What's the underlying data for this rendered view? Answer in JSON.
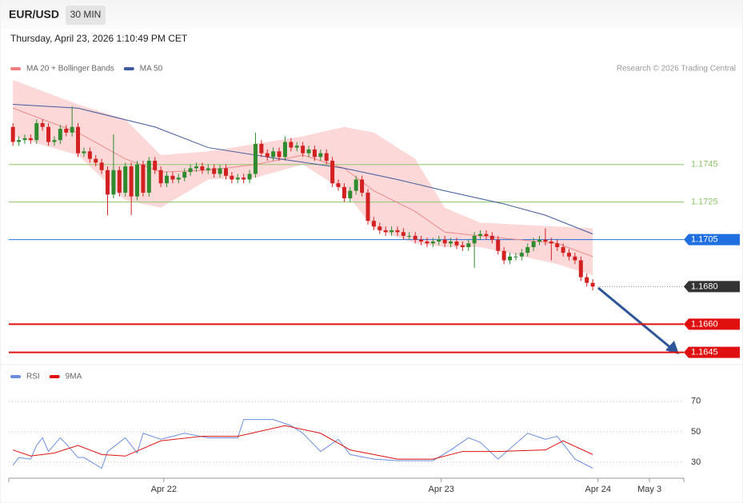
{
  "header": {
    "symbol": "EUR/USD",
    "interval": "30 MIN",
    "timestamp": "Thursday, April 23, 2026 1:10:49 PM CET",
    "copyright": "Research © 2026 Trading Central"
  },
  "chart_data": [
    {
      "type": "candlestick",
      "xlim": [
        -0.7,
        113.4
      ],
      "ylim": [
        1.1641,
        1.179
      ],
      "open": [
        1.1765,
        1.1757,
        1.1758,
        1.1759,
        1.1758,
        1.1767,
        1.1765,
        1.1757,
        1.1758,
        1.1764,
        1.1762,
        1.1765,
        1.1751,
        1.1752,
        1.1748,
        1.1746,
        1.1742,
        1.1729,
        1.1742,
        1.173,
        1.1744,
        1.1728,
        1.1745,
        1.173,
        1.1747,
        1.1742,
        1.1735,
        1.1739,
        1.1737,
        1.1738,
        1.1741,
        1.1743,
        1.1744,
        1.1742,
        1.1743,
        1.174,
        1.1743,
        1.1739,
        1.1737,
        1.1738,
        1.1737,
        1.174,
        1.1756,
        1.1751,
        1.1749,
        1.1752,
        1.1749,
        1.1757,
        1.1754,
        1.1755,
        1.1751,
        1.1753,
        1.1749,
        1.1751,
        1.1747,
        1.1735,
        1.1733,
        1.1727,
        1.1731,
        1.1737,
        1.173,
        1.1715,
        1.1712,
        1.171,
        1.1709,
        1.171,
        1.1709,
        1.1707,
        1.1707,
        1.1705,
        1.1704,
        1.1703,
        1.1704,
        1.1705,
        1.1703,
        1.1704,
        1.1702,
        1.1701,
        1.1703,
        1.1707,
        1.1708,
        1.1707,
        1.1705,
        1.1699,
        1.1694,
        1.1696,
        1.1696,
        1.1698,
        1.1701,
        1.1704,
        1.1705,
        1.1704,
        1.1703,
        1.1701,
        1.1698,
        1.1696,
        1.1694,
        1.1685,
        1.1682
      ],
      "high": [
        1.1767,
        1.176,
        1.1761,
        1.1761,
        1.1769,
        1.1769,
        1.1767,
        1.176,
        1.1766,
        1.1766,
        1.1776,
        1.1767,
        1.1754,
        1.1754,
        1.175,
        1.1748,
        1.1744,
        1.1761,
        1.1744,
        1.1746,
        1.1746,
        1.1747,
        1.1747,
        1.1749,
        1.1749,
        1.1744,
        1.1741,
        1.1741,
        1.174,
        1.1743,
        1.1745,
        1.1746,
        1.1746,
        1.1745,
        1.1745,
        1.1745,
        1.1745,
        1.1741,
        1.174,
        1.174,
        1.1742,
        1.1762,
        1.1758,
        1.1753,
        1.1754,
        1.1754,
        1.176,
        1.1759,
        1.1757,
        1.1757,
        1.1755,
        1.1755,
        1.1753,
        1.1753,
        1.1749,
        1.1737,
        1.1735,
        1.1733,
        1.1739,
        1.1739,
        1.1732,
        1.1717,
        1.1714,
        1.1712,
        1.1712,
        1.1712,
        1.1711,
        1.1709,
        1.1709,
        1.1707,
        1.1706,
        1.1706,
        1.1707,
        1.1707,
        1.1706,
        1.1706,
        1.1704,
        1.1705,
        1.1709,
        1.171,
        1.171,
        1.1709,
        1.1707,
        1.1701,
        1.1698,
        1.1698,
        1.17,
        1.1703,
        1.1706,
        1.1707,
        1.1711,
        1.1706,
        1.1705,
        1.1703,
        1.17,
        1.1698,
        1.1696,
        1.1687,
        1.1684
      ],
      "low": [
        1.1755,
        1.1755,
        1.1756,
        1.1756,
        1.1756,
        1.1763,
        1.1755,
        1.1755,
        1.1756,
        1.176,
        1.176,
        1.1749,
        1.1749,
        1.1746,
        1.1744,
        1.174,
        1.1718,
        1.1727,
        1.1728,
        1.1728,
        1.1718,
        1.1726,
        1.1728,
        1.1728,
        1.174,
        1.1733,
        1.1733,
        1.1735,
        1.1735,
        1.1736,
        1.1739,
        1.1741,
        1.174,
        1.174,
        1.1738,
        1.1738,
        1.1737,
        1.1735,
        1.1735,
        1.1735,
        1.1735,
        1.1738,
        1.1749,
        1.1747,
        1.1747,
        1.1747,
        1.1747,
        1.1752,
        1.1752,
        1.1749,
        1.1749,
        1.1747,
        1.1747,
        1.1745,
        1.1733,
        1.1731,
        1.1725,
        1.1725,
        1.1729,
        1.1728,
        1.1713,
        1.171,
        1.1708,
        1.1707,
        1.1707,
        1.1707,
        1.1705,
        1.1705,
        1.1703,
        1.1702,
        1.1701,
        1.1701,
        1.1702,
        1.1701,
        1.1701,
        1.17,
        1.1699,
        1.1699,
        1.169,
        1.1705,
        1.1705,
        1.1703,
        1.1697,
        1.1692,
        1.1692,
        1.1694,
        1.1694,
        1.1696,
        1.1699,
        1.1702,
        1.1702,
        1.1694,
        1.1699,
        1.1696,
        1.1694,
        1.1692,
        1.1683,
        1.168,
        1.1678
      ],
      "close": [
        1.1757,
        1.1758,
        1.1759,
        1.1758,
        1.1767,
        1.1765,
        1.1757,
        1.1758,
        1.1764,
        1.1762,
        1.1765,
        1.1751,
        1.1752,
        1.1748,
        1.1746,
        1.1742,
        1.1729,
        1.1742,
        1.173,
        1.1744,
        1.1728,
        1.1745,
        1.173,
        1.1747,
        1.1742,
        1.1735,
        1.1739,
        1.1737,
        1.1738,
        1.1741,
        1.1743,
        1.1744,
        1.1742,
        1.1743,
        1.174,
        1.1743,
        1.1739,
        1.1737,
        1.1738,
        1.1737,
        1.174,
        1.1756,
        1.1751,
        1.1749,
        1.1752,
        1.1749,
        1.1757,
        1.1754,
        1.1755,
        1.1751,
        1.1753,
        1.1749,
        1.1751,
        1.1747,
        1.1735,
        1.1733,
        1.1727,
        1.1731,
        1.1737,
        1.173,
        1.1715,
        1.1712,
        1.171,
        1.1709,
        1.171,
        1.1709,
        1.1707,
        1.1707,
        1.1705,
        1.1704,
        1.1703,
        1.1704,
        1.1705,
        1.1703,
        1.1704,
        1.1702,
        1.1701,
        1.1703,
        1.1707,
        1.1708,
        1.1707,
        1.1705,
        1.1699,
        1.1694,
        1.1696,
        1.1696,
        1.1698,
        1.1701,
        1.1704,
        1.1705,
        1.1704,
        1.1703,
        1.1701,
        1.1698,
        1.1696,
        1.1694,
        1.1685,
        1.1682,
        1.168
      ],
      "up_color": "#2e8b2e",
      "down_color": "#d32020",
      "series": [
        {
          "name": "MA 20 + Bollinger Bands",
          "color": "#ec8a8a",
          "band_color": "#fdd8d8",
          "x": [
            0,
            11,
            19,
            25,
            33,
            41,
            49,
            56,
            61,
            68,
            73,
            79,
            92,
            98
          ],
          "values": [
            1.1775,
            1.1762,
            1.1748,
            1.1741,
            1.1742,
            1.1745,
            1.175,
            1.1743,
            1.1731,
            1.172,
            1.1709,
            1.1707,
            1.1703,
            1.1696
          ],
          "upper": [
            1.179,
            1.1777,
            1.1769,
            1.175,
            1.1752,
            1.1756,
            1.176,
            1.1765,
            1.1762,
            1.1748,
            1.1722,
            1.1714,
            1.1712,
            1.1711
          ],
          "lower": [
            1.176,
            1.175,
            1.1726,
            1.1722,
            1.1737,
            1.1738,
            1.1745,
            1.1731,
            1.1711,
            1.1703,
            1.1701,
            1.1701,
            1.1692,
            1.1686
          ]
        },
        {
          "name": "MA 50",
          "color": "#3f5a9c",
          "x": [
            0,
            11,
            24,
            33,
            45,
            56,
            65,
            73,
            83,
            90,
            98
          ],
          "values": [
            1.1777,
            1.1775,
            1.1765,
            1.1754,
            1.1748,
            1.1743,
            1.1737,
            1.1731,
            1.1724,
            1.1718,
            1.1708
          ]
        }
      ],
      "levels": [
        1.1745,
        1.1725,
        1.1705,
        {
          "value": 1.168,
          "label": "1.1680"
        },
        {
          "value": 1.166,
          "label": "1.1660"
        },
        1.1645
      ],
      "level_colors": [
        "#8cc56b",
        "#8cc56b",
        "#1f6fe0",
        "#333333",
        "#e01010",
        "#e01010"
      ],
      "level_tags": [
        false,
        false,
        true,
        true,
        true,
        true
      ],
      "level_lines": [
        "thin",
        "thin",
        "thin",
        "dotted",
        "thick",
        "thick"
      ]
    },
    {
      "type": "line",
      "xlim": [
        -0.7,
        113.4
      ],
      "ylim": [
        21,
        92
      ],
      "yticks": [
        30,
        50,
        70
      ],
      "grid": true,
      "xticks": [
        {
          "value": 25.5,
          "label": "Apr 22"
        },
        {
          "value": 72.4,
          "label": "Apr 23"
        },
        {
          "value": 98.9,
          "label": "Apr 24"
        },
        {
          "value": 107.6,
          "label": "May 3"
        }
      ],
      "series": [
        {
          "name": "RSI",
          "color": "#6a8ee0",
          "x": [
            0,
            1,
            3,
            4,
            5,
            6,
            8,
            9,
            11,
            12,
            15,
            16,
            19,
            21,
            22,
            25,
            29,
            33,
            38,
            39,
            44,
            47,
            49,
            52,
            55,
            57,
            61,
            65,
            68,
            71,
            74,
            77,
            79,
            82,
            87,
            90,
            92,
            95,
            98
          ],
          "values": [
            28,
            33,
            32,
            41,
            46,
            37,
            46,
            42,
            33,
            33,
            26,
            37,
            46,
            36,
            49,
            45,
            49,
            46,
            46,
            58,
            58,
            54,
            49,
            37,
            45,
            35,
            32,
            31,
            31,
            31,
            38,
            46,
            43,
            32,
            49,
            45,
            47,
            32,
            26
          ]
        },
        {
          "name": "9MA",
          "color": "#e01010",
          "x": [
            0,
            3,
            7,
            11,
            15,
            19,
            25,
            32,
            38,
            46,
            52,
            57,
            65,
            71,
            76,
            82,
            90,
            93,
            98
          ],
          "values": [
            38,
            34,
            36,
            41,
            35,
            34,
            44,
            47,
            47,
            54,
            49,
            38,
            32,
            32,
            37,
            37,
            38,
            44,
            35
          ]
        }
      ]
    }
  ]
}
